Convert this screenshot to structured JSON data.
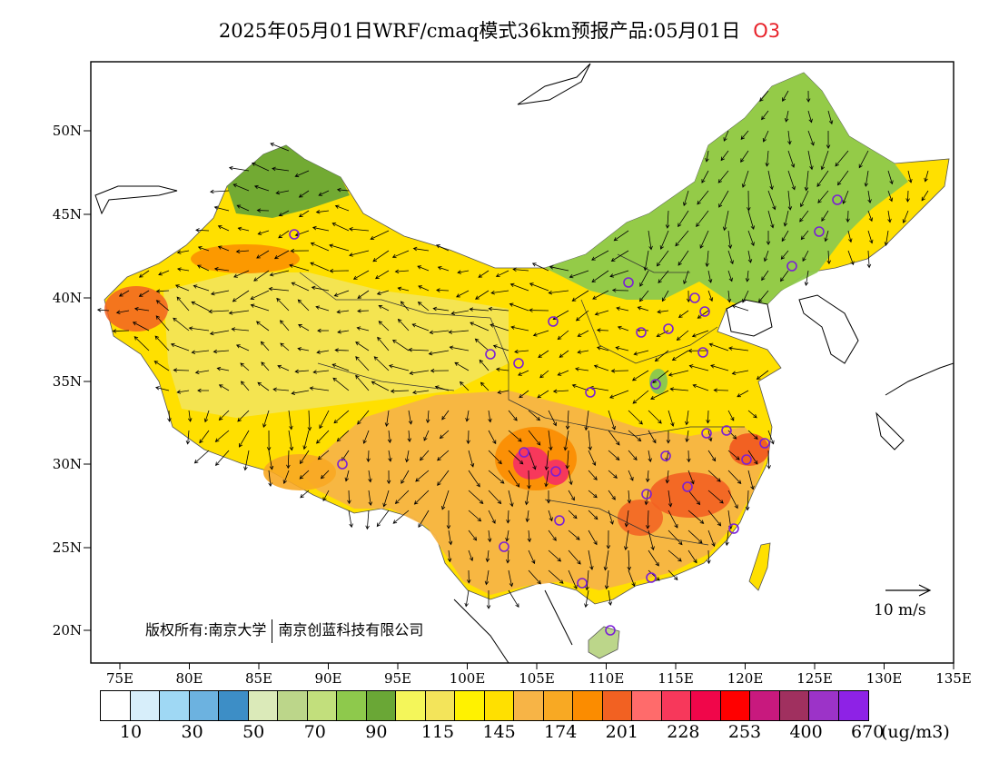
{
  "title": {
    "main": "2025年05月01日WRF/cmaq模式36km预报产品:05月01日",
    "species": "O3"
  },
  "axes": {
    "lat_labels": [
      "50N",
      "45N",
      "40N",
      "35N",
      "30N",
      "25N",
      "20N"
    ],
    "lon_labels": [
      "75E",
      "80E",
      "85E",
      "90E",
      "95E",
      "100E",
      "105E",
      "110E",
      "115E",
      "120E",
      "125E",
      "130E",
      "135E"
    ]
  },
  "copyright": {
    "part1": "版权所有:南京大学",
    "part2": "南京创蓝科技有限公司"
  },
  "wind_reference": {
    "label": "10 m/s"
  },
  "colorbar": {
    "colors": [
      "#ffffff",
      "#d7eefa",
      "#9fd8f4",
      "#6cb2e0",
      "#3d8ec6",
      "#dbeab9",
      "#bcd68a",
      "#c2df7c",
      "#8ec94c",
      "#6aa736",
      "#f4f65a",
      "#f3e45a",
      "#fff200",
      "#ffe000",
      "#f7b446",
      "#f8a923",
      "#fb8c00",
      "#f26122",
      "#ff6b6b",
      "#f7385b",
      "#f0064a",
      "#ff0000",
      "#c8197e",
      "#a0305f",
      "#9c33c8",
      "#8e22e6"
    ],
    "tick_labels": [
      "10",
      "30",
      "50",
      "70",
      "90",
      "115",
      "145",
      "174",
      "201",
      "228",
      "253",
      "400",
      "670"
    ],
    "unit": "(ug/m3)"
  },
  "legend_regions": {
    "low_o3_color": "#8ec94c",
    "high_o3_color": "#f7385b",
    "station_marker_color": "#7a1fd6"
  }
}
